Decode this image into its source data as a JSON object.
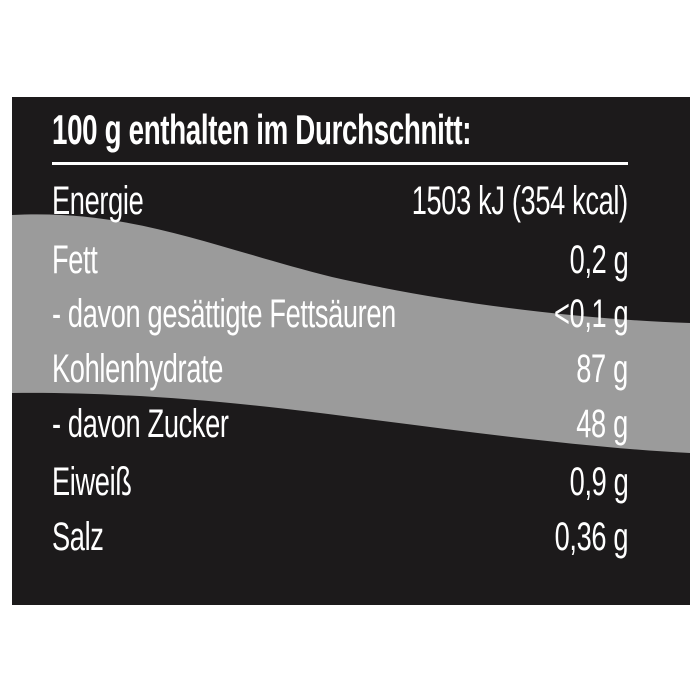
{
  "title": "100 g enthalten im Durchschnitt:",
  "rows": [
    {
      "label": "Energie",
      "value": "1503 kJ (354 kcal)"
    },
    {
      "label": "Fett",
      "value": "0,2 g"
    },
    {
      "label": "- davon gesättigte Fettsäuren",
      "value": "<0,1 g"
    },
    {
      "label": "Kohlenhydrate",
      "value": "87 g"
    },
    {
      "label": "- davon Zucker",
      "value": "48 g"
    },
    {
      "label": "Eiweiß",
      "value": "0,9 g"
    },
    {
      "label": "Salz",
      "value": "0,36 g"
    }
  ],
  "colors": {
    "background": "#1c1a1b",
    "band": "#9b9b9b",
    "text": "#ffffff"
  }
}
